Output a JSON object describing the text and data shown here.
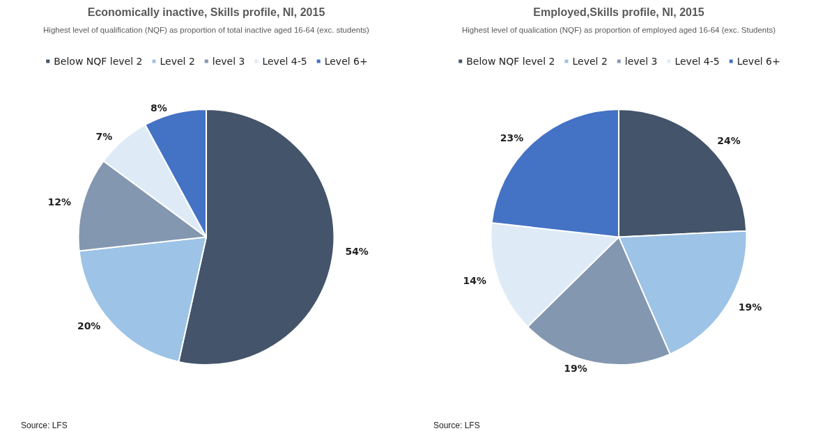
{
  "chart_data": [
    {
      "type": "pie",
      "title": "Economically inactive, Skills profile, NI, 2015",
      "subtitle": "Highest level of qualification (NQF) as proportion of total inactive aged 16-64 (exc. students)",
      "categories": [
        "Below NQF level 2",
        "Level 2",
        "level 3",
        "Level 4-5",
        "Level 6+"
      ],
      "values": [
        54,
        20,
        12,
        7,
        8
      ],
      "colors": [
        "#44546a",
        "#9dc3e6",
        "#8497b0",
        "#deebf7",
        "#4472c4"
      ],
      "legend": "top",
      "value_labels": [
        "54%",
        "20%",
        "12%",
        "7%",
        "8%"
      ],
      "annotations": [
        "Source: LFS"
      ]
    },
    {
      "type": "pie",
      "title": "Employed,Skills profile, NI, 2015",
      "subtitle": "Highest level of qualication (NQF) as proportion of employed aged 16-64 (exc. Students)",
      "categories": [
        "Below NQF level 2",
        "Level 2",
        "level 3",
        "Level 4-5",
        "Level 6+"
      ],
      "values": [
        24,
        19,
        19,
        14,
        23
      ],
      "colors": [
        "#44546a",
        "#9dc3e6",
        "#8497b0",
        "#deebf7",
        "#4472c4"
      ],
      "legend": "top",
      "value_labels": [
        "24%",
        "19%",
        "19%",
        "14%",
        "23%"
      ],
      "annotations": [
        "Source: LFS"
      ]
    }
  ]
}
